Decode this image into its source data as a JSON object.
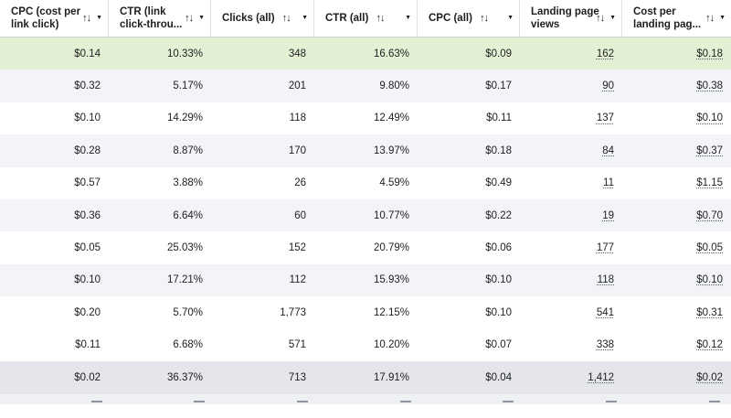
{
  "columns": [
    {
      "label": "CPC (cost per link click)",
      "line1": "CPC (cost per",
      "line2": "link click)",
      "sort_icon": "sort-icon",
      "dropdown_icon": "chevron-down-icon"
    },
    {
      "label": "CTR (link click-throu...",
      "line1": "CTR (link",
      "line2": "click-throu...",
      "sort_icon": "sort-icon",
      "dropdown_icon": "chevron-down-icon"
    },
    {
      "label": "Clicks (all)",
      "line1": "Clicks (all)",
      "line2": "",
      "sort_icon": "sort-icon",
      "dropdown_icon": "chevron-down-icon"
    },
    {
      "label": "CTR (all)",
      "line1": "CTR (all)",
      "line2": "",
      "sort_icon": "sort-icon",
      "dropdown_icon": "chevron-down-icon"
    },
    {
      "label": "CPC (all)",
      "line1": "CPC (all)",
      "line2": "",
      "sort_icon": "sort-icon",
      "dropdown_icon": "chevron-down-icon"
    },
    {
      "label": "Landing page views",
      "line1": "Landing page",
      "line2": "views",
      "sort_icon": "sort-icon",
      "dropdown_icon": "chevron-down-icon"
    },
    {
      "label": "Cost per landing pag...",
      "line1": "Cost per",
      "line2": "landing pag...",
      "sort_icon": "sort-icon",
      "dropdown_icon": "chevron-down-icon"
    }
  ],
  "sort_glyph": "↑↓",
  "caret_glyph": "▼",
  "rows": [
    [
      "$0.14",
      "10.33%",
      "348",
      "16.63%",
      "$0.09",
      "162",
      "$0.18"
    ],
    [
      "$0.32",
      "5.17%",
      "201",
      "9.80%",
      "$0.17",
      "90",
      "$0.38"
    ],
    [
      "$0.10",
      "14.29%",
      "118",
      "12.49%",
      "$0.11",
      "137",
      "$0.10"
    ],
    [
      "$0.28",
      "8.87%",
      "170",
      "13.97%",
      "$0.18",
      "84",
      "$0.37"
    ],
    [
      "$0.57",
      "3.88%",
      "26",
      "4.59%",
      "$0.49",
      "11",
      "$1.15"
    ],
    [
      "$0.36",
      "6.64%",
      "60",
      "10.77%",
      "$0.22",
      "19",
      "$0.70"
    ],
    [
      "$0.05",
      "25.03%",
      "152",
      "20.79%",
      "$0.06",
      "177",
      "$0.05"
    ],
    [
      "$0.10",
      "17.21%",
      "112",
      "15.93%",
      "$0.10",
      "118",
      "$0.10"
    ],
    [
      "$0.20",
      "5.70%",
      "1,773",
      "12.15%",
      "$0.10",
      "541",
      "$0.31"
    ],
    [
      "$0.11",
      "6.68%",
      "571",
      "10.20%",
      "$0.07",
      "338",
      "$0.12"
    ],
    [
      "$0.02",
      "36.37%",
      "713",
      "17.91%",
      "$0.04",
      "1,412",
      "$0.02"
    ]
  ],
  "colors": {
    "highlight_row": "#e3f0d4",
    "alt_row": "#f3f4f7",
    "selected_row": "#e4e6eb"
  }
}
